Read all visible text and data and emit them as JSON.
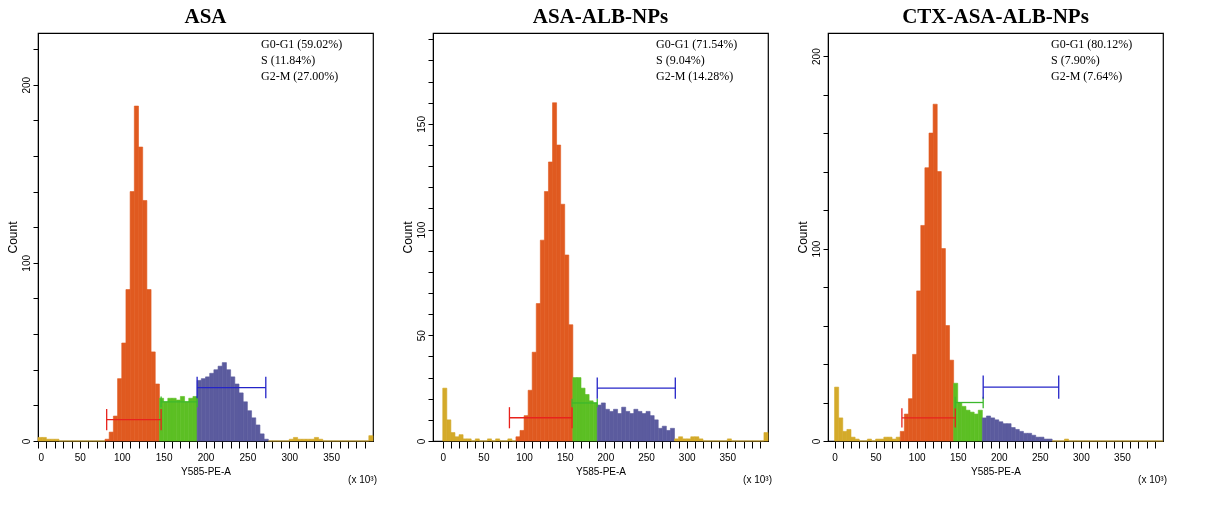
{
  "chart_data": [
    {
      "type": "histogram",
      "title": "ASA",
      "xlabel": "Y585-PE-A",
      "ylabel": "Count",
      "grid": false,
      "xlim": [
        0,
        400
      ],
      "ylim": [
        0,
        229
      ],
      "xticks": [
        0,
        {
          "value": 10,
          "label": null
        },
        {
          "value": 20,
          "label": null
        },
        {
          "value": 30,
          "label": null
        },
        {
          "value": 40,
          "label": null
        },
        50,
        {
          "value": 60,
          "label": null
        },
        {
          "value": 70,
          "label": null
        },
        {
          "value": 80,
          "label": null
        },
        {
          "value": 90,
          "label": null
        },
        100,
        {
          "value": 110,
          "label": null
        },
        {
          "value": 120,
          "label": null
        },
        {
          "value": 130,
          "label": null
        },
        {
          "value": 140,
          "label": null
        },
        150,
        {
          "value": 160,
          "label": null
        },
        {
          "value": 170,
          "label": null
        },
        {
          "value": 180,
          "label": null
        },
        {
          "value": 190,
          "label": null
        },
        200,
        {
          "value": 210,
          "label": null
        },
        {
          "value": 220,
          "label": null
        },
        {
          "value": 230,
          "label": null
        },
        {
          "value": 240,
          "label": null
        },
        250,
        {
          "value": 260,
          "label": null
        },
        {
          "value": 270,
          "label": null
        },
        {
          "value": 280,
          "label": null
        },
        {
          "value": 290,
          "label": null
        },
        300,
        {
          "value": 310,
          "label": null
        },
        {
          "value": 320,
          "label": null
        },
        {
          "value": 330,
          "label": null
        },
        {
          "value": 340,
          "label": null
        },
        350,
        {
          "value": 360,
          "label": null
        },
        {
          "value": 370,
          "label": null
        },
        {
          "value": 380,
          "label": null
        },
        {
          "value": 390,
          "label": null
        }
      ],
      "yticks": [
        0,
        {
          "value": 20,
          "label": null
        },
        {
          "value": 40,
          "label": null
        },
        {
          "value": 60,
          "label": null
        },
        {
          "value": 80,
          "label": null
        },
        100,
        {
          "value": 120,
          "label": null
        },
        {
          "value": 140,
          "label": null
        },
        {
          "value": 160,
          "label": null
        },
        {
          "value": 180,
          "label": null
        },
        200,
        {
          "value": 220,
          "label": null
        }
      ],
      "bins": [
        0,
        5,
        10,
        15,
        20,
        25,
        30,
        35,
        40,
        45,
        50,
        55,
        60,
        65,
        70,
        75,
        80,
        85,
        90,
        95,
        100,
        105,
        110,
        115,
        120,
        125,
        130,
        135,
        140,
        145,
        150,
        155,
        160,
        165,
        170,
        175,
        180,
        185,
        190,
        195,
        200,
        205,
        210,
        215,
        220,
        225,
        230,
        235,
        240,
        245,
        250,
        255,
        260,
        265,
        270,
        275,
        280,
        285,
        290,
        295,
        300,
        305,
        310,
        315,
        320,
        325,
        330,
        335,
        340,
        345,
        350,
        355,
        360,
        365,
        370,
        375,
        380,
        385,
        390,
        395,
        400
      ],
      "values": [
        2,
        2,
        1,
        1,
        1,
        0,
        0,
        0,
        0,
        0,
        0,
        0,
        0,
        0,
        0,
        0,
        1,
        5,
        14,
        35,
        55,
        85,
        140,
        188,
        165,
        135,
        85,
        50,
        32,
        24,
        22,
        24,
        24,
        23,
        25,
        22,
        24,
        25,
        34,
        35,
        36,
        38,
        40,
        42,
        44,
        40,
        36,
        32,
        27,
        22,
        17,
        13,
        9,
        4,
        1,
        0,
        0,
        0,
        0,
        0,
        1,
        2,
        1,
        1,
        1,
        1,
        2,
        1,
        0,
        0,
        0,
        0,
        0,
        0,
        0,
        0,
        0,
        0,
        0,
        3
      ],
      "colors": [
        "#d4aa2a",
        "#d4aa2a",
        "#d4aa2a",
        "#d4aa2a",
        "#d4aa2a",
        "#d4aa2a",
        "#d4aa2a",
        "#d4aa2a",
        "#d4aa2a",
        "#d4aa2a",
        "#d4aa2a",
        "#d4aa2a",
        "#d4aa2a",
        "#d4aa2a",
        "#d4aa2a",
        "#d4aa2a",
        "#e05a20",
        "#e05a20",
        "#e05a20",
        "#e05a20",
        "#e05a20",
        "#e05a20",
        "#e05a20",
        "#e05a20",
        "#e05a20",
        "#e05a20",
        "#e05a20",
        "#e05a20",
        "#e05a20",
        "#5cbf24",
        "#5cbf24",
        "#5cbf24",
        "#5cbf24",
        "#5cbf24",
        "#5cbf24",
        "#5cbf24",
        "#5cbf24",
        "#5cbf24",
        "#5b5b9e",
        "#5b5b9e",
        "#5b5b9e",
        "#5b5b9e",
        "#5b5b9e",
        "#5b5b9e",
        "#5b5b9e",
        "#5b5b9e",
        "#5b5b9e",
        "#5b5b9e",
        "#5b5b9e",
        "#5b5b9e",
        "#5b5b9e",
        "#5b5b9e",
        "#5b5b9e",
        "#5b5b9e",
        "#5b5b9e",
        "#d4aa2a",
        "#d4aa2a",
        "#d4aa2a",
        "#d4aa2a",
        "#d4aa2a",
        "#d4aa2a",
        "#d4aa2a",
        "#d4aa2a",
        "#d4aa2a",
        "#d4aa2a",
        "#d4aa2a",
        "#d4aa2a",
        "#d4aa2a",
        "#d4aa2a",
        "#d4aa2a",
        "#d4aa2a",
        "#d4aa2a",
        "#d4aa2a",
        "#d4aa2a",
        "#d4aa2a",
        "#d4aa2a",
        "#d4aa2a",
        "#d4aa2a",
        "#d4aa2a",
        "#d4aa2a"
      ],
      "series": [
        {
          "type": "line",
          "color": "#e8221c",
          "x": [
            82,
            147
          ],
          "values": [
            12,
            12
          ],
          "errors": [
            6,
            6
          ]
        },
        {
          "type": "line",
          "color": "#3cb82c",
          "x": [
            147,
            190
          ],
          "values": [
            22,
            22
          ],
          "errors": [
            3,
            3
          ]
        },
        {
          "type": "line",
          "color": "#2424c8",
          "x": [
            190,
            272
          ],
          "values": [
            30,
            30
          ],
          "errors": [
            6,
            6
          ]
        }
      ],
      "annotations": [
        "G0-G1  (59.02%)",
        "S (11.84%)",
        "G2-M  (27.00%)",
        "(x 10³)"
      ]
    },
    {
      "type": "histogram",
      "title": "ASA-ALB-NPs",
      "xlabel": "Y585-PE-A",
      "ylabel": "Count",
      "grid": false,
      "xlim": [
        -12,
        400
      ],
      "ylim": [
        0,
        193
      ],
      "xticks": [
        0,
        {
          "value": 10,
          "label": null
        },
        {
          "value": 20,
          "label": null
        },
        {
          "value": 30,
          "label": null
        },
        {
          "value": 40,
          "label": null
        },
        50,
        {
          "value": 60,
          "label": null
        },
        {
          "value": 70,
          "label": null
        },
        {
          "value": 80,
          "label": null
        },
        {
          "value": 90,
          "label": null
        },
        100,
        {
          "value": 110,
          "label": null
        },
        {
          "value": 120,
          "label": null
        },
        {
          "value": 130,
          "label": null
        },
        {
          "value": 140,
          "label": null
        },
        150,
        {
          "value": 160,
          "label": null
        },
        {
          "value": 170,
          "label": null
        },
        {
          "value": 180,
          "label": null
        },
        {
          "value": 190,
          "label": null
        },
        200,
        {
          "value": 210,
          "label": null
        },
        {
          "value": 220,
          "label": null
        },
        {
          "value": 230,
          "label": null
        },
        {
          "value": 240,
          "label": null
        },
        250,
        {
          "value": 260,
          "label": null
        },
        {
          "value": 270,
          "label": null
        },
        {
          "value": 280,
          "label": null
        },
        {
          "value": 290,
          "label": null
        },
        300,
        {
          "value": 310,
          "label": null
        },
        {
          "value": 320,
          "label": null
        },
        {
          "value": 330,
          "label": null
        },
        {
          "value": 340,
          "label": null
        },
        350,
        {
          "value": 360,
          "label": null
        },
        {
          "value": 370,
          "label": null
        },
        {
          "value": 380,
          "label": null
        },
        {
          "value": 390,
          "label": null
        }
      ],
      "yticks": [
        0,
        {
          "value": 10,
          "label": null
        },
        {
          "value": 20,
          "label": null
        },
        {
          "value": 30,
          "label": null
        },
        {
          "value": 40,
          "label": null
        },
        50,
        {
          "value": 60,
          "label": null
        },
        {
          "value": 70,
          "label": null
        },
        {
          "value": 80,
          "label": null
        },
        {
          "value": 90,
          "label": null
        },
        100,
        {
          "value": 110,
          "label": null
        },
        {
          "value": 120,
          "label": null
        },
        {
          "value": 130,
          "label": null
        },
        {
          "value": 140,
          "label": null
        },
        150,
        {
          "value": 160,
          "label": null
        },
        {
          "value": 170,
          "label": null
        },
        {
          "value": 180,
          "label": null
        },
        {
          "value": 190,
          "label": null
        }
      ],
      "bins": [
        0,
        5,
        10,
        15,
        20,
        25,
        30,
        35,
        40,
        45,
        50,
        55,
        60,
        65,
        70,
        75,
        80,
        85,
        90,
        95,
        100,
        105,
        110,
        115,
        120,
        125,
        130,
        135,
        140,
        145,
        150,
        155,
        160,
        165,
        170,
        175,
        180,
        185,
        190,
        195,
        200,
        205,
        210,
        215,
        220,
        225,
        230,
        235,
        240,
        245,
        250,
        255,
        260,
        265,
        270,
        275,
        280,
        285,
        290,
        295,
        300,
        305,
        310,
        315,
        320,
        325,
        330,
        335,
        340,
        345,
        350,
        355,
        360,
        365,
        370,
        375,
        380,
        385,
        390,
        395,
        400
      ],
      "values": [
        25,
        10,
        4,
        2,
        3,
        1,
        1,
        0,
        1,
        0,
        0,
        1,
        0,
        1,
        0,
        0,
        1,
        0,
        2,
        5,
        12,
        24,
        42,
        65,
        95,
        118,
        132,
        160,
        140,
        112,
        88,
        55,
        30,
        30,
        25,
        22,
        19,
        18,
        17,
        18,
        15,
        14,
        15,
        13,
        16,
        14,
        13,
        15,
        14,
        13,
        14,
        12,
        10,
        6,
        7,
        5,
        6,
        1,
        2,
        1,
        1,
        2,
        2,
        1,
        0,
        0,
        0,
        0,
        0,
        0,
        1,
        0,
        0,
        0,
        0,
        0,
        0,
        0,
        0,
        4
      ],
      "colors": [
        "#d4aa2a",
        "#d4aa2a",
        "#d4aa2a",
        "#d4aa2a",
        "#d4aa2a",
        "#d4aa2a",
        "#d4aa2a",
        "#d4aa2a",
        "#d4aa2a",
        "#d4aa2a",
        "#d4aa2a",
        "#d4aa2a",
        "#d4aa2a",
        "#d4aa2a",
        "#d4aa2a",
        "#d4aa2a",
        "#d4aa2a",
        "#d4aa2a",
        "#e05a20",
        "#e05a20",
        "#e05a20",
        "#e05a20",
        "#e05a20",
        "#e05a20",
        "#e05a20",
        "#e05a20",
        "#e05a20",
        "#e05a20",
        "#e05a20",
        "#e05a20",
        "#e05a20",
        "#e05a20",
        "#5cbf24",
        "#5cbf24",
        "#5cbf24",
        "#5cbf24",
        "#5cbf24",
        "#5cbf24",
        "#5b5b9e",
        "#5b5b9e",
        "#5b5b9e",
        "#5b5b9e",
        "#5b5b9e",
        "#5b5b9e",
        "#5b5b9e",
        "#5b5b9e",
        "#5b5b9e",
        "#5b5b9e",
        "#5b5b9e",
        "#5b5b9e",
        "#5b5b9e",
        "#5b5b9e",
        "#5b5b9e",
        "#5b5b9e",
        "#5b5b9e",
        "#5b5b9e",
        "#5b5b9e",
        "#d4aa2a",
        "#d4aa2a",
        "#d4aa2a",
        "#d4aa2a",
        "#d4aa2a",
        "#d4aa2a",
        "#d4aa2a",
        "#d4aa2a",
        "#d4aa2a",
        "#d4aa2a",
        "#d4aa2a",
        "#d4aa2a",
        "#d4aa2a",
        "#d4aa2a",
        "#d4aa2a",
        "#d4aa2a",
        "#d4aa2a",
        "#d4aa2a",
        "#d4aa2a",
        "#d4aa2a",
        "#d4aa2a",
        "#d4aa2a",
        "#d4aa2a"
      ],
      "series": [
        {
          "type": "line",
          "color": "#e8221c",
          "x": [
            82,
            159
          ],
          "values": [
            11,
            11
          ],
          "errors": [
            5,
            5
          ]
        },
        {
          "type": "line",
          "color": "#3cb82c",
          "x": [
            159,
            190
          ],
          "values": [
            18,
            18
          ],
          "errors": [
            2,
            2
          ]
        },
        {
          "type": "line",
          "color": "#2424c8",
          "x": [
            190,
            286
          ],
          "values": [
            25,
            25
          ],
          "errors": [
            5,
            5
          ]
        }
      ],
      "annotations": [
        "G0-G1  (71.54%)",
        "S (9.04%)",
        "G2-M  (14.28%)",
        "(x 10³)"
      ]
    },
    {
      "type": "histogram",
      "title": "CTX-ASA-ALB-NPs",
      "xlabel": "Y585-PE-A",
      "ylabel": "Count",
      "grid": false,
      "xlim": [
        -8,
        400
      ],
      "ylim": [
        0,
        212
      ],
      "xticks": [
        0,
        {
          "value": 10,
          "label": null
        },
        {
          "value": 20,
          "label": null
        },
        {
          "value": 30,
          "label": null
        },
        {
          "value": 40,
          "label": null
        },
        50,
        {
          "value": 60,
          "label": null
        },
        {
          "value": 70,
          "label": null
        },
        {
          "value": 80,
          "label": null
        },
        {
          "value": 90,
          "label": null
        },
        100,
        {
          "value": 110,
          "label": null
        },
        {
          "value": 120,
          "label": null
        },
        {
          "value": 130,
          "label": null
        },
        {
          "value": 140,
          "label": null
        },
        150,
        {
          "value": 160,
          "label": null
        },
        {
          "value": 170,
          "label": null
        },
        {
          "value": 180,
          "label": null
        },
        {
          "value": 190,
          "label": null
        },
        200,
        {
          "value": 210,
          "label": null
        },
        {
          "value": 220,
          "label": null
        },
        {
          "value": 230,
          "label": null
        },
        {
          "value": 240,
          "label": null
        },
        250,
        {
          "value": 260,
          "label": null
        },
        {
          "value": 270,
          "label": null
        },
        {
          "value": 280,
          "label": null
        },
        {
          "value": 290,
          "label": null
        },
        300,
        {
          "value": 310,
          "label": null
        },
        {
          "value": 320,
          "label": null
        },
        {
          "value": 330,
          "label": null
        },
        {
          "value": 340,
          "label": null
        },
        350,
        {
          "value": 360,
          "label": null
        },
        {
          "value": 370,
          "label": null
        },
        {
          "value": 380,
          "label": null
        },
        {
          "value": 390,
          "label": null
        }
      ],
      "yticks": [
        0,
        {
          "value": 20,
          "label": null
        },
        {
          "value": 40,
          "label": null
        },
        {
          "value": 60,
          "label": null
        },
        {
          "value": 80,
          "label": null
        },
        100,
        {
          "value": 120,
          "label": null
        },
        {
          "value": 140,
          "label": null
        },
        {
          "value": 160,
          "label": null
        },
        {
          "value": 180,
          "label": null
        },
        200
      ],
      "bins": [
        0,
        5,
        10,
        15,
        20,
        25,
        30,
        35,
        40,
        45,
        50,
        55,
        60,
        65,
        70,
        75,
        80,
        85,
        90,
        95,
        100,
        105,
        110,
        115,
        120,
        125,
        130,
        135,
        140,
        145,
        150,
        155,
        160,
        165,
        170,
        175,
        180,
        185,
        190,
        195,
        200,
        205,
        210,
        215,
        220,
        225,
        230,
        235,
        240,
        245,
        250,
        255,
        260,
        265,
        270,
        275,
        280,
        285,
        290,
        295,
        300,
        305,
        310,
        315,
        320,
        325,
        330,
        335,
        340,
        345,
        350,
        355,
        360,
        365,
        370,
        375,
        380,
        385,
        390,
        395,
        400
      ],
      "values": [
        28,
        12,
        5,
        6,
        2,
        1,
        0,
        0,
        1,
        0,
        1,
        1,
        2,
        2,
        1,
        2,
        5,
        14,
        22,
        45,
        78,
        112,
        142,
        160,
        175,
        140,
        100,
        60,
        42,
        30,
        20,
        18,
        16,
        15,
        14,
        16,
        12,
        13,
        12,
        11,
        10,
        9,
        9,
        7,
        6,
        5,
        4,
        4,
        3,
        2,
        2,
        1,
        1,
        0,
        0,
        0,
        1,
        0,
        0,
        0,
        0,
        0,
        0,
        0,
        0,
        0,
        0,
        0,
        0,
        0,
        0,
        0,
        0,
        0,
        0,
        0,
        0,
        0,
        0,
        0
      ],
      "colors": [
        "#d4aa2a",
        "#d4aa2a",
        "#d4aa2a",
        "#d4aa2a",
        "#d4aa2a",
        "#d4aa2a",
        "#d4aa2a",
        "#d4aa2a",
        "#d4aa2a",
        "#d4aa2a",
        "#d4aa2a",
        "#d4aa2a",
        "#d4aa2a",
        "#d4aa2a",
        "#d4aa2a",
        "#d4aa2a",
        "#e05a20",
        "#e05a20",
        "#e05a20",
        "#e05a20",
        "#e05a20",
        "#e05a20",
        "#e05a20",
        "#e05a20",
        "#e05a20",
        "#e05a20",
        "#e05a20",
        "#e05a20",
        "#e05a20",
        "#5cbf24",
        "#5cbf24",
        "#5cbf24",
        "#5cbf24",
        "#5cbf24",
        "#5cbf24",
        "#5cbf24",
        "#5b5b9e",
        "#5b5b9e",
        "#5b5b9e",
        "#5b5b9e",
        "#5b5b9e",
        "#5b5b9e",
        "#5b5b9e",
        "#5b5b9e",
        "#5b5b9e",
        "#5b5b9e",
        "#5b5b9e",
        "#5b5b9e",
        "#5b5b9e",
        "#5b5b9e",
        "#5b5b9e",
        "#5b5b9e",
        "#5b5b9e",
        "#d4aa2a",
        "#d4aa2a",
        "#d4aa2a",
        "#d4aa2a",
        "#d4aa2a",
        "#d4aa2a",
        "#d4aa2a",
        "#d4aa2a",
        "#d4aa2a",
        "#d4aa2a",
        "#d4aa2a",
        "#d4aa2a",
        "#d4aa2a",
        "#d4aa2a",
        "#d4aa2a",
        "#d4aa2a",
        "#d4aa2a",
        "#d4aa2a",
        "#d4aa2a",
        "#d4aa2a",
        "#d4aa2a",
        "#d4aa2a",
        "#d4aa2a",
        "#d4aa2a",
        "#d4aa2a",
        "#d4aa2a",
        "#d4aa2a"
      ],
      "series": [
        {
          "type": "line",
          "color": "#e8221c",
          "x": [
            82,
            147
          ],
          "values": [
            12,
            12
          ],
          "errors": [
            5,
            5
          ]
        },
        {
          "type": "line",
          "color": "#3cb82c",
          "x": [
            147,
            181
          ],
          "values": [
            20,
            20
          ],
          "errors": [
            3,
            3
          ]
        },
        {
          "type": "line",
          "color": "#2424c8",
          "x": [
            181,
            273
          ],
          "values": [
            28,
            28
          ],
          "errors": [
            6,
            6
          ]
        }
      ],
      "annotations": [
        "G0-G1  (80.12%)",
        "S (7.90%)",
        "G2-M  (7.64%)",
        "(x 10³)"
      ]
    }
  ]
}
